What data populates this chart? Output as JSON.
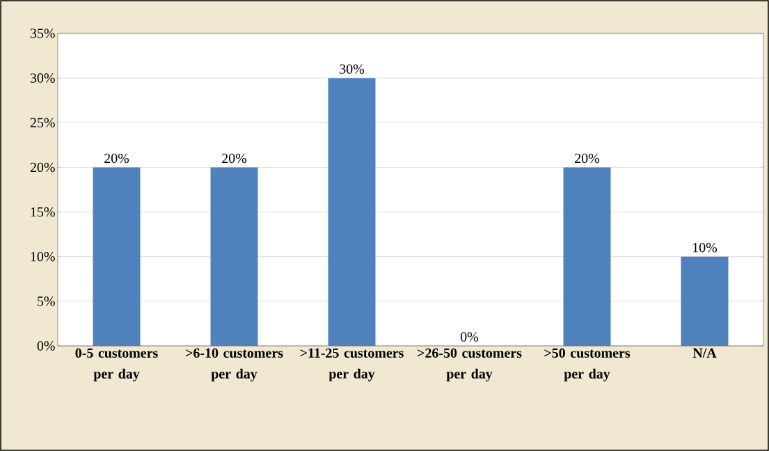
{
  "chart_data": {
    "type": "bar",
    "categories": [
      "0-5 customers per day",
      ">6-10 customers per day",
      ">11-25 customers per day",
      ">26-50 customers per day",
      ">50 customers per day",
      "N/A"
    ],
    "values": [
      20,
      20,
      30,
      0,
      20,
      10
    ],
    "value_labels": [
      "20%",
      "20%",
      "30%",
      "0%",
      "20%",
      "10%"
    ],
    "color": "#4f81bd",
    "ylim": [
      0,
      35
    ],
    "yticks": [
      {
        "value": 0,
        "label": "0%"
      },
      {
        "value": 5,
        "label": "5%"
      },
      {
        "value": 10,
        "label": "10%"
      },
      {
        "value": 15,
        "label": "15%"
      },
      {
        "value": 20,
        "label": "20%"
      },
      {
        "value": 25,
        "label": "25%"
      },
      {
        "value": 30,
        "label": "30%"
      },
      {
        "value": 35,
        "label": "35%"
      }
    ],
    "grid": "y"
  }
}
